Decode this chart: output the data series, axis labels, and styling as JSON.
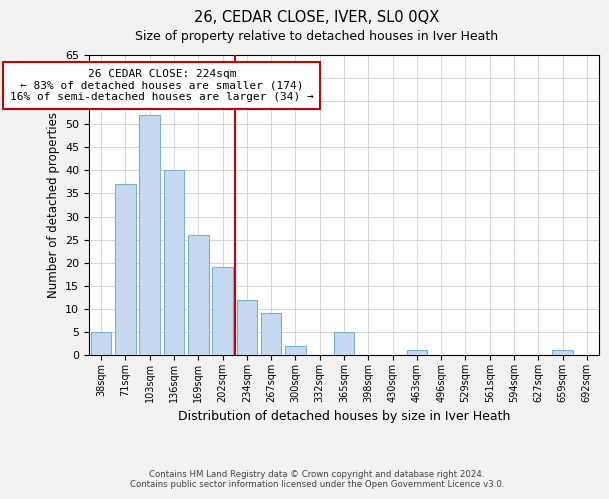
{
  "title": "26, CEDAR CLOSE, IVER, SL0 0QX",
  "subtitle": "Size of property relative to detached houses in Iver Heath",
  "xlabel": "Distribution of detached houses by size in Iver Heath",
  "ylabel": "Number of detached properties",
  "bar_labels": [
    "38sqm",
    "71sqm",
    "103sqm",
    "136sqm",
    "169sqm",
    "202sqm",
    "234sqm",
    "267sqm",
    "300sqm",
    "332sqm",
    "365sqm",
    "398sqm",
    "430sqm",
    "463sqm",
    "496sqm",
    "529sqm",
    "561sqm",
    "594sqm",
    "627sqm",
    "659sqm",
    "692sqm"
  ],
  "bar_values": [
    5,
    37,
    52,
    40,
    26,
    19,
    12,
    9,
    2,
    0,
    5,
    0,
    0,
    1,
    0,
    0,
    0,
    0,
    0,
    1,
    0
  ],
  "bar_color": "#c5d9f0",
  "bar_edge_color": "#7bafd4",
  "vline_color": "#cc0000",
  "ylim": [
    0,
    65
  ],
  "yticks": [
    0,
    5,
    10,
    15,
    20,
    25,
    30,
    35,
    40,
    45,
    50,
    55,
    60,
    65
  ],
  "annotation_title": "26 CEDAR CLOSE: 224sqm",
  "annotation_line1": "← 83% of detached houses are smaller (174)",
  "annotation_line2": "16% of semi-detached houses are larger (34) →",
  "annotation_box_color": "#ffffff",
  "annotation_box_edge": "#cc0000",
  "footer_line1": "Contains HM Land Registry data © Crown copyright and database right 2024.",
  "footer_line2": "Contains public sector information licensed under the Open Government Licence v3.0.",
  "background_color": "#f2f2f2",
  "plot_background_color": "#ffffff",
  "grid_color": "#d0d0d0"
}
